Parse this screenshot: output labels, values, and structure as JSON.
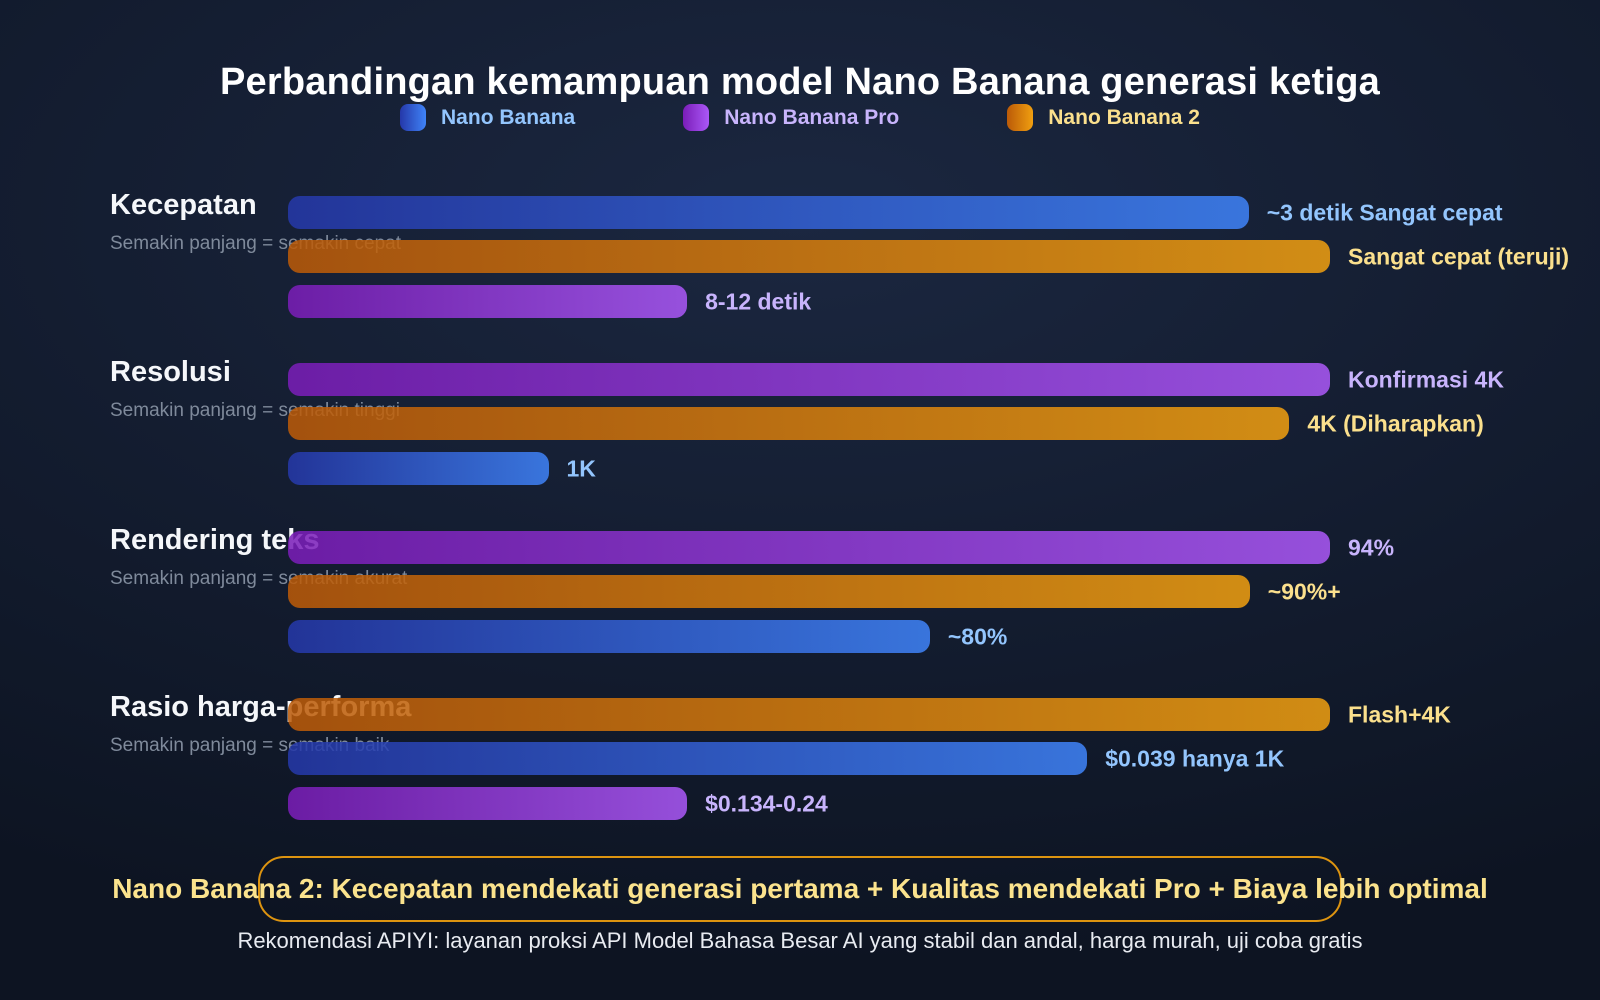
{
  "title": "Perbandingan kemampuan model Nano Banana generasi ketiga",
  "legend": [
    {
      "label": "Nano Banana",
      "series": "nb"
    },
    {
      "label": "Nano Banana Pro",
      "series": "pro"
    },
    {
      "label": "Nano Banana 2",
      "series": "nb2"
    }
  ],
  "colors": {
    "nano_banana_from": "#2538a9",
    "nano_banana_to": "#3f83f8",
    "nano_banana_text": "#93c5fd",
    "pro_from": "#7a1db8",
    "pro_to": "#ab58f7",
    "pro_text": "#c8b4fc",
    "nb2_from": "#bb5a08",
    "nb2_to": "#f09f10",
    "nb2_text": "#fbe08d",
    "callout_border": "#dd9410",
    "background": "#131c2f"
  },
  "sections": [
    {
      "heading": "Kecepatan",
      "note": "Semakin panjang = semakin cepat",
      "bars": [
        {
          "series": "nb",
          "width_pct": 92.2,
          "label": "~3 detik Sangat cepat"
        },
        {
          "series": "nb2",
          "width_pct": 100,
          "label": "Sangat cepat (teruji)"
        },
        {
          "series": "pro",
          "width_pct": 38.3,
          "label": "8-12 detik"
        }
      ]
    },
    {
      "heading": "Resolusi",
      "note": "Semakin panjang = semakin tinggi",
      "bars": [
        {
          "series": "pro",
          "width_pct": 100,
          "label": "Konfirmasi 4K"
        },
        {
          "series": "nb2",
          "width_pct": 96.1,
          "label": "4K (Diharapkan)"
        },
        {
          "series": "nb",
          "width_pct": 25.0,
          "label": "1K"
        }
      ]
    },
    {
      "heading": "Rendering teks",
      "note": "Semakin panjang = semakin akurat",
      "bars": [
        {
          "series": "pro",
          "width_pct": 100,
          "label": "94%"
        },
        {
          "series": "nb2",
          "width_pct": 92.3,
          "label": "~90%+"
        },
        {
          "series": "nb",
          "width_pct": 61.6,
          "label": "~80%"
        }
      ]
    },
    {
      "heading": "Rasio harga-performa",
      "note": "Semakin panjang = semakin baik",
      "bars": [
        {
          "series": "nb2",
          "width_pct": 100,
          "label": "Flash+4K"
        },
        {
          "series": "nb",
          "width_pct": 76.7,
          "label": "$0.039 hanya 1K"
        },
        {
          "series": "pro",
          "width_pct": 38.3,
          "label": "$0.134-0.24"
        }
      ]
    }
  ],
  "callout": "Nano Banana 2: Kecepatan mendekati generasi pertama + Kualitas mendekati Pro + Biaya lebih optimal",
  "footer": "Rekomendasi APIYI: layanan proksi API Model Bahasa Besar AI yang stabil dan andal, harga murah, uji coba gratis",
  "chart_data": {
    "type": "bar",
    "orientation": "horizontal",
    "title": "Perbandingan kemampuan model Nano Banana generasi ketiga",
    "legend_entries": [
      "Nano Banana",
      "Nano Banana Pro",
      "Nano Banana 2"
    ],
    "legend_position": "top-center",
    "grid": false,
    "axis": "none (bar length relative, 0-100% of chart width)",
    "groups": [
      {
        "category": "Kecepatan",
        "note": "Semakin panjang = semakin cepat",
        "bars": [
          {
            "series": "Nano Banana",
            "length_pct": 92.2,
            "value_label": "~3 detik Sangat cepat"
          },
          {
            "series": "Nano Banana 2",
            "length_pct": 100,
            "value_label": "Sangat cepat (teruji)"
          },
          {
            "series": "Nano Banana Pro",
            "length_pct": 38.3,
            "value_label": "8-12 detik"
          }
        ]
      },
      {
        "category": "Resolusi",
        "note": "Semakin panjang = semakin tinggi",
        "bars": [
          {
            "series": "Nano Banana Pro",
            "length_pct": 100,
            "value_label": "Konfirmasi 4K"
          },
          {
            "series": "Nano Banana 2",
            "length_pct": 96.1,
            "value_label": "4K (Diharapkan)"
          },
          {
            "series": "Nano Banana",
            "length_pct": 25.0,
            "value_label": "1K"
          }
        ]
      },
      {
        "category": "Rendering teks",
        "note": "Semakin panjang = semakin akurat",
        "bars": [
          {
            "series": "Nano Banana Pro",
            "length_pct": 100,
            "value_label": "94%"
          },
          {
            "series": "Nano Banana 2",
            "length_pct": 92.3,
            "value_label": "~90%+"
          },
          {
            "series": "Nano Banana",
            "length_pct": 61.6,
            "value_label": "~80%"
          }
        ]
      },
      {
        "category": "Rasio harga-performa",
        "note": "Semakin panjang = semakin baik",
        "bars": [
          {
            "series": "Nano Banana 2",
            "length_pct": 100,
            "value_label": "Flash+4K"
          },
          {
            "series": "Nano Banana",
            "length_pct": 76.7,
            "value_label": "$0.039 hanya 1K"
          },
          {
            "series": "Nano Banana Pro",
            "length_pct": 38.3,
            "value_label": "$0.134-0.24"
          }
        ]
      }
    ],
    "annotation": "Nano Banana 2: Kecepatan mendekati generasi pertama + Kualitas mendekati Pro + Biaya lebih optimal",
    "caption": "Rekomendasi APIYI: layanan proksi API Model Bahasa Besar AI yang stabil dan andal, harga murah, uji coba gratis"
  }
}
